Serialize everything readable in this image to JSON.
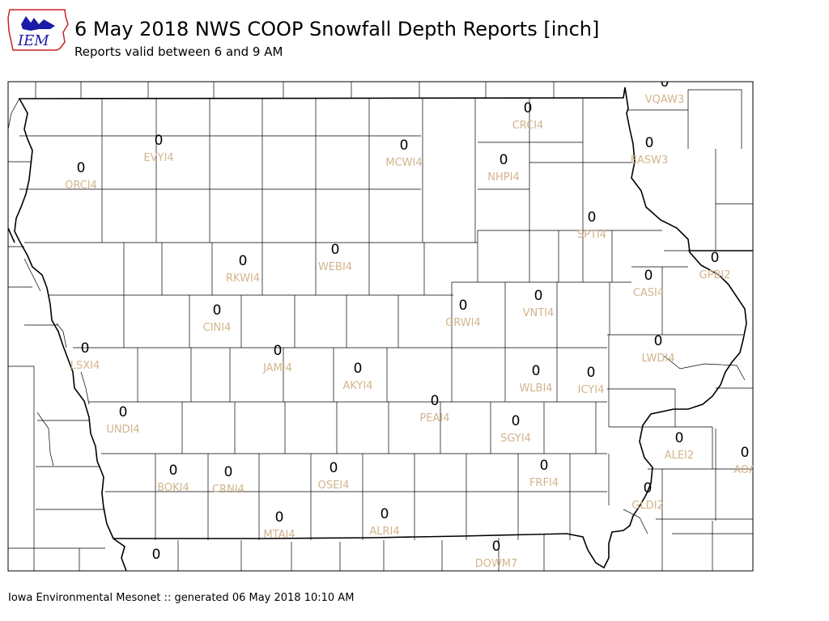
{
  "header": {
    "title": "6 May 2018 NWS COOP Snowfall Depth Reports [inch]",
    "subtitle": "Reports valid between 6 and 9 AM",
    "logo_text": "IEM"
  },
  "footer": {
    "text": "Iowa Environmental Mesonet :: generated 06 May 2018 10:10 AM"
  },
  "colors": {
    "station_label": "#d2b48c",
    "value_label": "#000000",
    "logo_blue": "#1a1aa6",
    "logo_red": "#cc2222"
  },
  "stations": [
    {
      "id": "VQAW3",
      "value": "0"
    },
    {
      "id": "CRCI4",
      "value": "0"
    },
    {
      "id": "EVYI4",
      "value": "0"
    },
    {
      "id": "MCWI4",
      "value": "0"
    },
    {
      "id": "EASW3",
      "value": "0"
    },
    {
      "id": "ORCI4",
      "value": "0"
    },
    {
      "id": "NHPI4",
      "value": "0"
    },
    {
      "id": "SPTI4",
      "value": "0"
    },
    {
      "id": "GPBI2",
      "value": "0"
    },
    {
      "id": "RKWI4",
      "value": "0"
    },
    {
      "id": "WEBI4",
      "value": "0"
    },
    {
      "id": "CASI4",
      "value": "0"
    },
    {
      "id": "VNTI4",
      "value": "0"
    },
    {
      "id": "GRWI4",
      "value": "0"
    },
    {
      "id": "CINI4",
      "value": "0"
    },
    {
      "id": "LWDI4",
      "value": "0"
    },
    {
      "id": "LSXI4",
      "value": "0"
    },
    {
      "id": "JAMI4",
      "value": "0"
    },
    {
      "id": "AKYI4",
      "value": "0"
    },
    {
      "id": "WLBI4",
      "value": "0"
    },
    {
      "id": "ICYI4",
      "value": "0"
    },
    {
      "id": "PEAI4",
      "value": "0"
    },
    {
      "id": "UNDI4",
      "value": "0"
    },
    {
      "id": "SGYI4",
      "value": "0"
    },
    {
      "id": "ALEI2",
      "value": "0"
    },
    {
      "id": "AOA",
      "value": "0"
    },
    {
      "id": "BOKI4",
      "value": "0"
    },
    {
      "id": "CRNI4",
      "value": "0"
    },
    {
      "id": "OSEI4",
      "value": "0"
    },
    {
      "id": "FRFI4",
      "value": "0"
    },
    {
      "id": "GLDI2",
      "value": "0"
    },
    {
      "id": "MTAI4",
      "value": "0"
    },
    {
      "id": "ALRI4",
      "value": "0"
    },
    {
      "id": "DOWM7",
      "value": "0"
    },
    {
      "id": "",
      "value": "0"
    }
  ]
}
